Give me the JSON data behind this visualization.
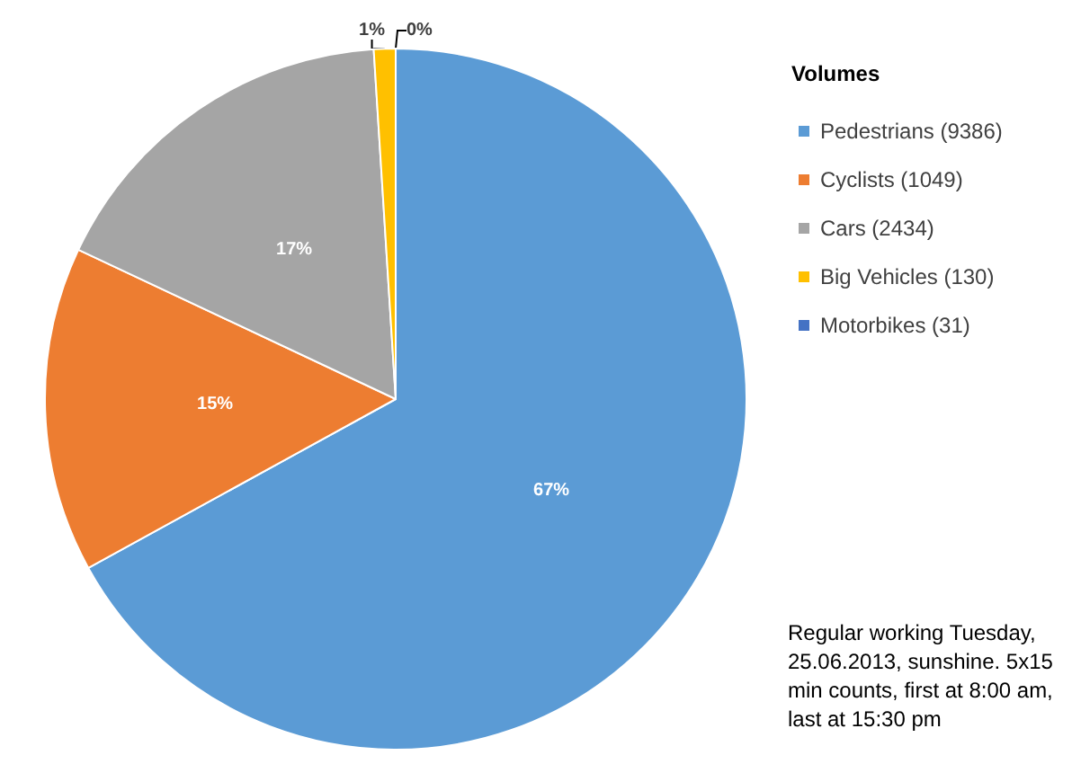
{
  "chart_data": {
    "type": "pie",
    "categories": [
      "Pedestrians (9386)",
      "Cyclists (1049)",
      "Cars (2434)",
      "Big Vehicles (130)",
      "Motorbikes (31)"
    ],
    "values": [
      67,
      15,
      17,
      1,
      0
    ],
    "colors": [
      "#5b9bd5",
      "#ed7d31",
      "#a5a5a5",
      "#ffc000",
      "#4472c4"
    ],
    "value_labels": [
      "67%",
      "15%",
      "17%",
      "1%",
      "0%"
    ],
    "legend_title": "Volumes",
    "legend": "right",
    "annotations": [
      "Regular working Tuesday, 25.06.2013, sunshine. 5x15 min counts, first at 8:00 am, last at 15:30 pm"
    ]
  }
}
